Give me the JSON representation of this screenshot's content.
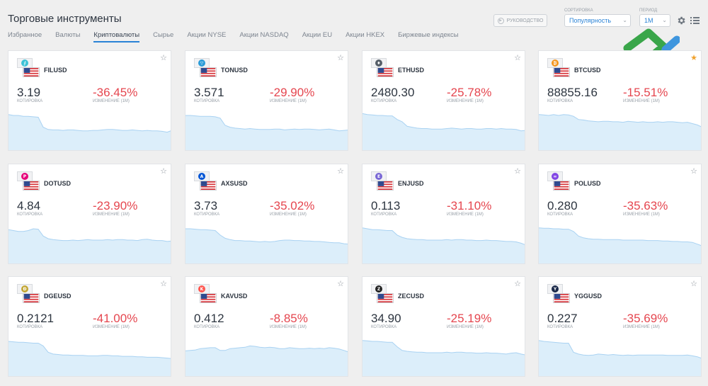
{
  "header": {
    "title": "Торговые инструменты",
    "guide_label": "РУКОВОДСТВО",
    "sort_label": "СОРТИРОВКА",
    "sort_value": "Популярность",
    "period_label": "ПЕРИОД",
    "period_value": "1M"
  },
  "tabs": [
    {
      "label": "Избранное",
      "active": false
    },
    {
      "label": "Валюты",
      "active": false
    },
    {
      "label": "Криптовалюты",
      "active": true
    },
    {
      "label": "Сырье",
      "active": false
    },
    {
      "label": "Акции NYSE",
      "active": false
    },
    {
      "label": "Акции NASDAQ",
      "active": false
    },
    {
      "label": "Акции EU",
      "active": false
    },
    {
      "label": "Акции HKEX",
      "active": false
    },
    {
      "label": "Биржевые индексы",
      "active": false
    }
  ],
  "quote_caption": "КОТИРОВКА",
  "change_caption": "ИЗМЕНЕНИЕ (1М)",
  "colors": {
    "accent": "#2a83d6",
    "negative": "#e5464f",
    "spark_fill": "#dceefa",
    "spark_line": "#a9d2f2",
    "favorite": "#f0a22e"
  },
  "instruments": [
    {
      "symbol": "FILUSD",
      "icon": "filecoin-icon",
      "glyph": "⨍",
      "color": "#3cc1d6",
      "quote": "3.19",
      "change": "-36.45%",
      "favorite": false,
      "spark": [
        88,
        86,
        86,
        84,
        84,
        83,
        82,
        60,
        55,
        54,
        54,
        53,
        54,
        54,
        53,
        52,
        52,
        53,
        53,
        54,
        55,
        55,
        54,
        53,
        53,
        54,
        53,
        52,
        53,
        52,
        52,
        51,
        49,
        53
      ]
    },
    {
      "symbol": "TONUSD",
      "icon": "toncoin-icon",
      "glyph": "▽",
      "color": "#2a9cd8",
      "quote": "3.571",
      "change": "-29.90%",
      "favorite": false,
      "spark": [
        86,
        86,
        85,
        84,
        84,
        84,
        83,
        80,
        64,
        60,
        58,
        57,
        56,
        57,
        56,
        55,
        55,
        55,
        56,
        56,
        54,
        55,
        56,
        55,
        56,
        56,
        55,
        54,
        55,
        56,
        54,
        52,
        53,
        54
      ]
    },
    {
      "symbol": "ETHUSD",
      "icon": "ethereum-icon",
      "glyph": "♦",
      "color": "#555e68",
      "quote": "2480.30",
      "change": "-25.78%",
      "favorite": false,
      "spark": [
        90,
        88,
        87,
        86,
        86,
        85,
        85,
        77,
        72,
        62,
        60,
        58,
        57,
        57,
        56,
        56,
        56,
        57,
        58,
        57,
        56,
        57,
        57,
        56,
        56,
        57,
        57,
        56,
        57,
        56,
        56,
        55,
        52,
        53
      ]
    },
    {
      "symbol": "BTCUSD",
      "icon": "bitcoin-icon",
      "glyph": "₿",
      "color": "#f5961e",
      "quote": "88855.16",
      "change": "-15.51%",
      "favorite": true,
      "spark": [
        88,
        87,
        86,
        88,
        86,
        88,
        87,
        84,
        77,
        76,
        74,
        73,
        72,
        73,
        73,
        72,
        72,
        71,
        73,
        72,
        71,
        72,
        71,
        71,
        72,
        71,
        72,
        72,
        71,
        70,
        71,
        68,
        65,
        60
      ]
    },
    {
      "symbol": "DOTUSD",
      "icon": "polkadot-icon",
      "glyph": "P",
      "color": "#e6007a",
      "quote": "4.84",
      "change": "-23.90%",
      "favorite": false,
      "spark": [
        84,
        82,
        80,
        80,
        82,
        86,
        85,
        70,
        64,
        62,
        61,
        60,
        60,
        61,
        60,
        61,
        62,
        61,
        61,
        61,
        62,
        61,
        62,
        62,
        61,
        61,
        60,
        62,
        63,
        61,
        60,
        60,
        58,
        59
      ]
    },
    {
      "symbol": "AXSUSD",
      "icon": "axie-icon",
      "glyph": "A",
      "color": "#0055d5",
      "quote": "3.73",
      "change": "-35.02%",
      "favorite": false,
      "spark": [
        86,
        86,
        85,
        84,
        84,
        83,
        82,
        72,
        65,
        62,
        60,
        60,
        59,
        59,
        58,
        57,
        58,
        57,
        58,
        60,
        61,
        61,
        60,
        60,
        59,
        59,
        58,
        58,
        57,
        56,
        55,
        55,
        53,
        52
      ]
    },
    {
      "symbol": "ENJUSD",
      "icon": "enjin-icon",
      "glyph": "E",
      "color": "#7866d5",
      "quote": "0.113",
      "change": "-31.10%",
      "favorite": false,
      "spark": [
        88,
        86,
        84,
        84,
        83,
        82,
        82,
        72,
        67,
        64,
        63,
        62,
        62,
        61,
        61,
        61,
        61,
        62,
        61,
        62,
        62,
        61,
        61,
        60,
        60,
        61,
        60,
        60,
        59,
        58,
        58,
        57,
        54,
        50
      ]
    },
    {
      "symbol": "POLUSD",
      "icon": "polygon-icon",
      "glyph": "∞",
      "color": "#8247e5",
      "quote": "0.280",
      "change": "-35.63%",
      "favorite": false,
      "spark": [
        88,
        87,
        87,
        86,
        86,
        85,
        85,
        80,
        70,
        66,
        64,
        63,
        63,
        62,
        62,
        62,
        62,
        61,
        61,
        61,
        61,
        61,
        60,
        60,
        60,
        59,
        59,
        58,
        58,
        57,
        57,
        56,
        52,
        48
      ]
    },
    {
      "symbol": "DGEUSD",
      "icon": "dogecoin-icon",
      "glyph": "Ð",
      "color": "#c2a633",
      "quote": "0.2121",
      "change": "-41.00%",
      "favorite": false,
      "spark": [
        86,
        85,
        84,
        84,
        83,
        82,
        82,
        76,
        62,
        58,
        57,
        56,
        56,
        55,
        55,
        55,
        54,
        54,
        54,
        55,
        55,
        54,
        54,
        53,
        53,
        53,
        52,
        52,
        51,
        51,
        51,
        50,
        49,
        48
      ]
    },
    {
      "symbol": "KAVUSD",
      "icon": "kava-icon",
      "glyph": "K",
      "color": "#ff564f",
      "quote": "0.412",
      "change": "-8.85%",
      "favorite": false,
      "spark": [
        65,
        66,
        67,
        70,
        71,
        72,
        72,
        66,
        66,
        70,
        71,
        72,
        73,
        76,
        75,
        73,
        72,
        73,
        72,
        70,
        70,
        72,
        71,
        70,
        70,
        71,
        70,
        71,
        70,
        72,
        71,
        69,
        66,
        62
      ]
    },
    {
      "symbol": "ZECUSD",
      "icon": "zcash-icon",
      "glyph": "Z",
      "color": "#222222",
      "quote": "34.90",
      "change": "-25.19%",
      "favorite": false,
      "spark": [
        88,
        87,
        86,
        86,
        85,
        84,
        84,
        74,
        66,
        64,
        63,
        62,
        62,
        61,
        61,
        61,
        61,
        62,
        61,
        62,
        62,
        61,
        61,
        60,
        60,
        61,
        60,
        60,
        59,
        58,
        60,
        61,
        58,
        56
      ]
    },
    {
      "symbol": "YGGUSD",
      "icon": "ygg-icon",
      "glyph": "Y",
      "color": "#1b2a4a",
      "quote": "0.227",
      "change": "-35.69%",
      "favorite": false,
      "spark": [
        88,
        86,
        85,
        84,
        83,
        82,
        82,
        62,
        58,
        56,
        55,
        56,
        58,
        57,
        56,
        57,
        56,
        55,
        56,
        55,
        56,
        56,
        56,
        56,
        56,
        56,
        55,
        55,
        55,
        55,
        56,
        54,
        52,
        48
      ]
    }
  ]
}
